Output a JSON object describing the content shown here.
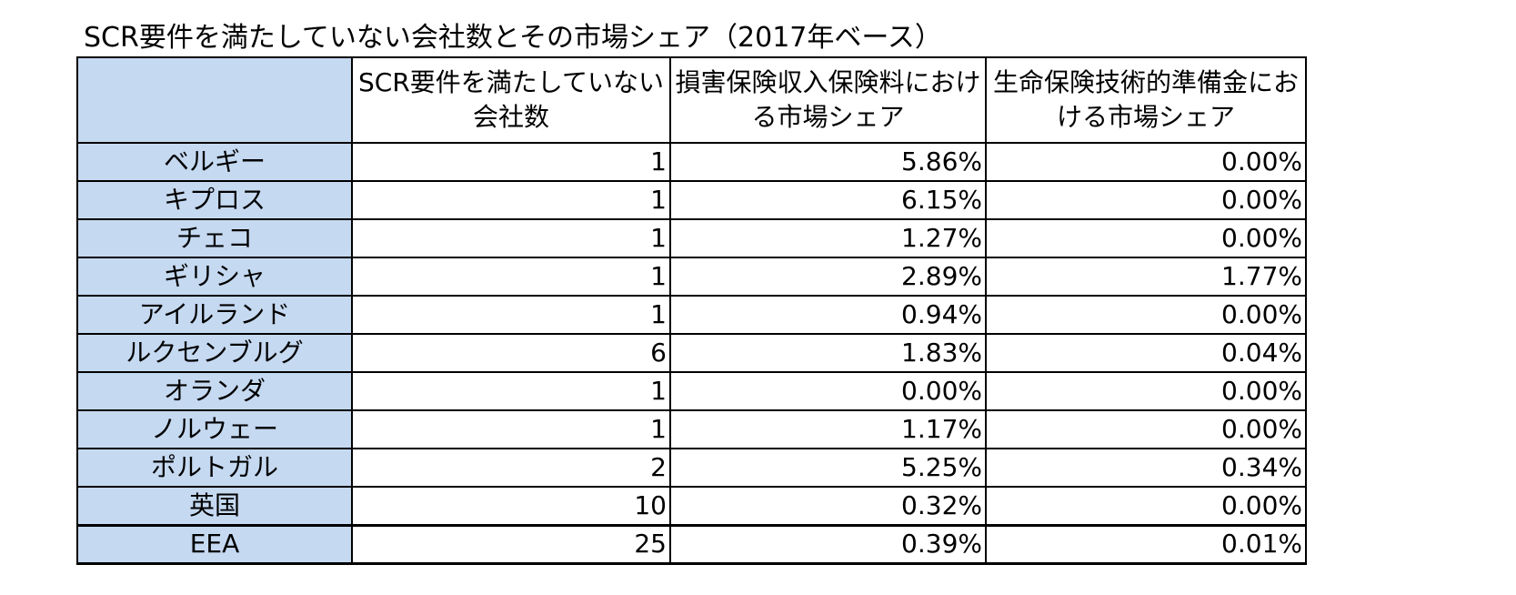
{
  "title": "SCR要件を満たしていない会社数とその市場シェア（2017年ベース）",
  "header": {
    "corner": "",
    "col1": "SCR要件を満たしていない会社数",
    "col2": "損害保険収入保険料における市場シェア",
    "col3": "生命保険技術的準備金における市場シェア"
  },
  "rows": [
    {
      "country": "ベルギー",
      "companies": "1",
      "nonlife_share": "5.86%",
      "life_share": "0.00%"
    },
    {
      "country": "キプロス",
      "companies": "1",
      "nonlife_share": "6.15%",
      "life_share": "0.00%"
    },
    {
      "country": "チェコ",
      "companies": "1",
      "nonlife_share": "1.27%",
      "life_share": "0.00%"
    },
    {
      "country": "ギリシャ",
      "companies": "1",
      "nonlife_share": "2.89%",
      "life_share": "1.77%"
    },
    {
      "country": "アイルランド",
      "companies": "1",
      "nonlife_share": "0.94%",
      "life_share": "0.00%"
    },
    {
      "country": "ルクセンブルグ",
      "companies": "6",
      "nonlife_share": "1.83%",
      "life_share": "0.04%"
    },
    {
      "country": "オランダ",
      "companies": "1",
      "nonlife_share": "0.00%",
      "life_share": "0.00%"
    },
    {
      "country": "ノルウェー",
      "companies": "1",
      "nonlife_share": "1.17%",
      "life_share": "0.00%"
    },
    {
      "country": "ポルトガル",
      "companies": "2",
      "nonlife_share": "5.25%",
      "life_share": "0.34%"
    },
    {
      "country": "英国",
      "companies": "10",
      "nonlife_share": "0.32%",
      "life_share": "0.00%"
    },
    {
      "country": "EEA",
      "companies": "25",
      "nonlife_share": "0.39%",
      "life_share": "0.01%"
    }
  ],
  "colors": {
    "header_fill": "#c5d9f1",
    "border": "#000000"
  }
}
